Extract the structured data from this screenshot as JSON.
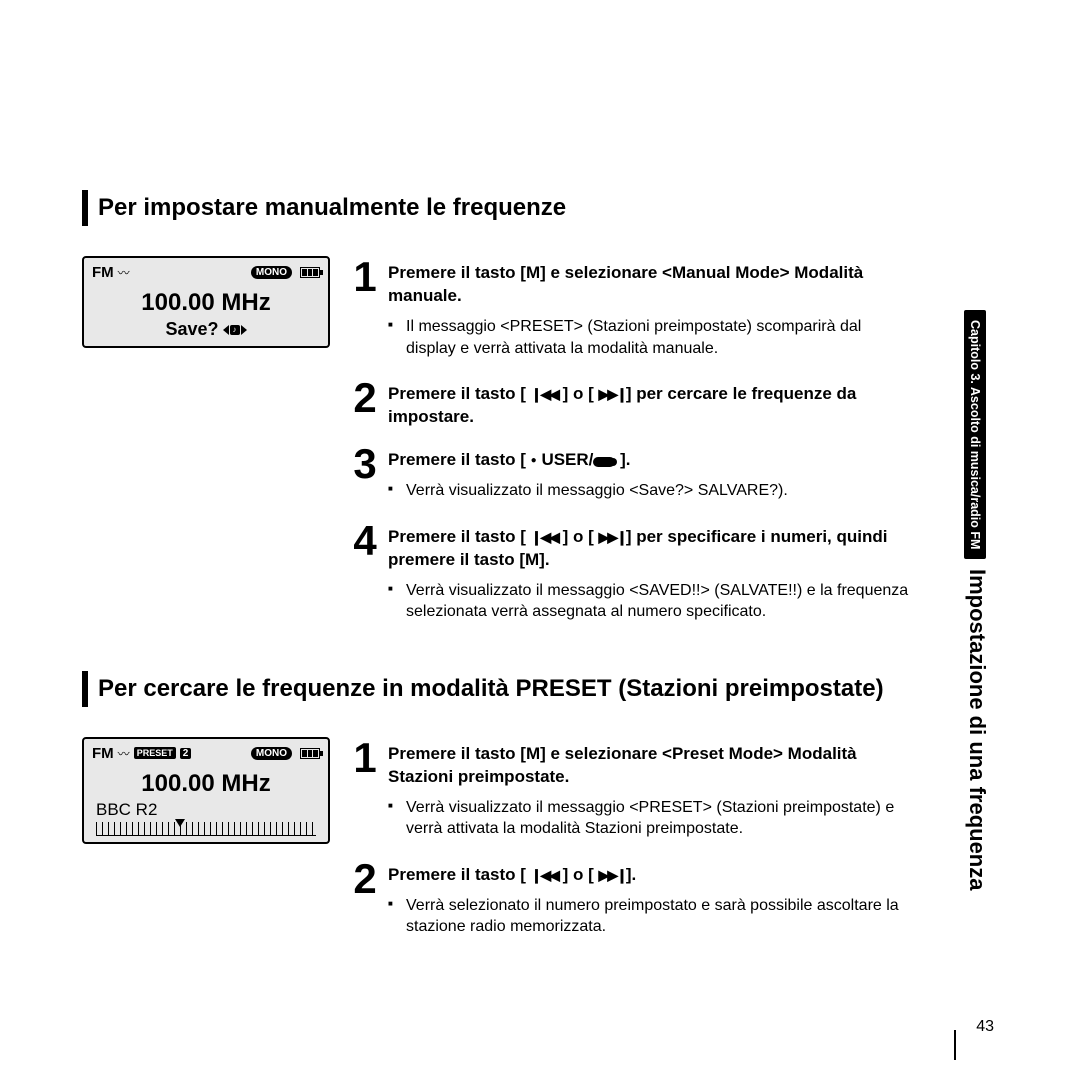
{
  "page_number": "43",
  "side_tab": {
    "chapter": "Capitolo 3. Ascolto di musica/radio FM",
    "title": "Impostazione di una frequenza"
  },
  "section1": {
    "heading": "Per impostare manualmente le frequenze",
    "device": {
      "fm": "FM",
      "mono": "MONO",
      "freq": "100.00 MHz",
      "save": "Save?"
    },
    "steps": [
      {
        "n": "1",
        "bold_pre": "Premere il tasto [",
        "bold_mid": "] e selezionare <Manual Mode> Modalità manuale.",
        "subs": [
          "Il messaggio <PRESET> (Stazioni preimpostate) scomparirà dal display e verrà attivata la modalità manuale."
        ]
      },
      {
        "n": "2",
        "bold_pre": "Premere il tasto [ ",
        "bold_mid": " ] o [ ",
        "bold_post": "] per cercare le frequenze da impostare."
      },
      {
        "n": "3",
        "bold_pre": "Premere il tasto [ ",
        "bold_mid": " USER/",
        "bold_post": " ].",
        "subs": [
          "Verrà visualizzato il messaggio <Save?> SALVARE?)."
        ]
      },
      {
        "n": "4",
        "bold_pre": "Premere il tasto [ ",
        "bold_mid": " ] o [ ",
        "bold_mid2": "] per specificare i numeri, quindi premere il tasto [",
        "bold_post": "].",
        "subs": [
          "Verrà visualizzato il messaggio <SAVED!!> (SALVATE!!) e la frequenza selezionata verrà assegnata al numero specificato."
        ]
      }
    ]
  },
  "section2": {
    "heading": "Per cercare le frequenze in modalità PRESET (Stazioni preimpostate)",
    "device": {
      "fm": "FM",
      "preset": "PRESET",
      "preset_num": "2",
      "mono": "MONO",
      "freq": "100.00 MHz",
      "station": "BBC R2"
    },
    "steps": [
      {
        "n": "1",
        "bold_pre": "Premere il tasto [",
        "bold_mid": "] e selezionare <Preset Mode> Modalità Stazioni preimpostate.",
        "subs": [
          "Verrà visualizzato il messaggio <PRESET> (Stazioni preimpostate) e verrà attivata la modalità Stazioni preimpostate."
        ]
      },
      {
        "n": "2",
        "bold_pre": "Premere il tasto [ ",
        "bold_mid": " ] o [ ",
        "bold_post": "].",
        "subs": [
          "Verrà selezionato il numero preimpostato e sarà possibile ascoltare la stazione radio memorizzata."
        ]
      }
    ]
  }
}
